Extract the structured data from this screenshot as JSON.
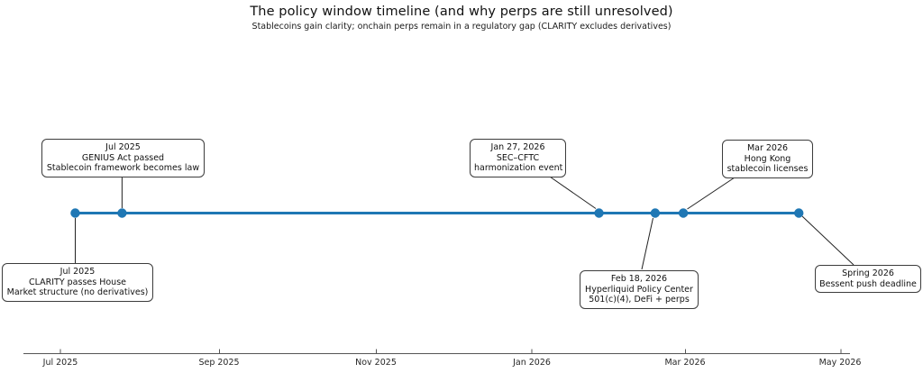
{
  "title": "The policy window timeline (and why perps are still unresolved)",
  "subtitle": "Stablecoins gain clarity; onchain perps remain in a regulatory gap (CLARITY excludes derivatives)",
  "chart_data": {
    "type": "scatter",
    "variant": "timeline",
    "title": "The policy window timeline (and why perps are still unresolved)",
    "subtitle": "Stablecoins gain clarity; onchain perps remain in a regulatory gap (CLARITY excludes derivatives)",
    "timeline_color": "#1f77b4",
    "marker_color": "#1f77b4",
    "x_axis": {
      "tick_labels": [
        "Jul 2025",
        "Sep 2025",
        "Nov 2025",
        "Jan 2026",
        "Mar 2026",
        "May 2026"
      ],
      "grid": false
    },
    "legend": null,
    "events": [
      {
        "date": "Jul 2025",
        "t_months_after_jul_2025": 0.19,
        "label_position": "below",
        "lines": [
          "Jul 2025",
          "CLARITY passes House",
          "Market structure (no derivatives)"
        ]
      },
      {
        "date": "Jul 2025",
        "t_months_after_jul_2025": 0.79,
        "label_position": "above",
        "lines": [
          "Jul 2025",
          "GENIUS Act passed",
          "Stablecoin framework becomes law"
        ]
      },
      {
        "date": "Jan 27, 2026",
        "t_months_after_jul_2025": 6.9,
        "label_position": "above",
        "lines": [
          "Jan 27, 2026",
          "SEC–CFTC",
          "harmonization event"
        ]
      },
      {
        "date": "Feb 18, 2026",
        "t_months_after_jul_2025": 7.62,
        "label_position": "below",
        "lines": [
          "Feb 18, 2026",
          "Hyperliquid Policy Center",
          "501(c)(4), DeFi + perps"
        ]
      },
      {
        "date": "Mar 2026",
        "t_months_after_jul_2025": 7.98,
        "label_position": "above",
        "lines": [
          "Mar 2026",
          "Hong Kong",
          "stablecoin licenses"
        ]
      },
      {
        "date": "Spring 2026",
        "t_months_after_jul_2025": 9.46,
        "label_position": "below",
        "lines": [
          "Spring 2026",
          "Bessent push deadline"
        ]
      }
    ]
  }
}
